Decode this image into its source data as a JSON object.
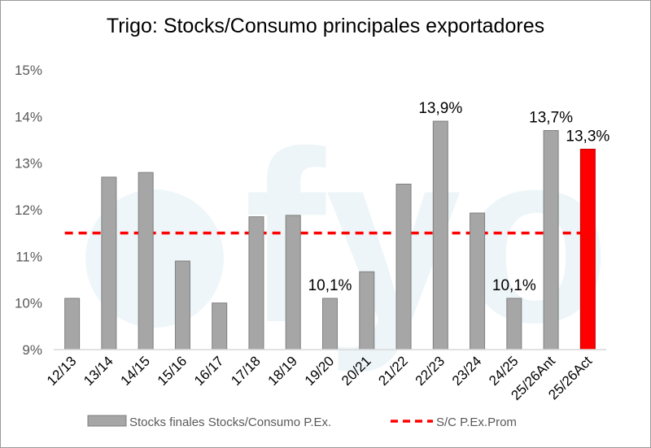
{
  "chart_data": {
    "type": "bar",
    "title": "Trigo: Stocks/Consumo principales exportadores",
    "xlabel": "",
    "ylabel": "",
    "ylim": [
      9,
      15
    ],
    "yticks": [
      "9%",
      "10%",
      "11%",
      "12%",
      "13%",
      "14%",
      "15%"
    ],
    "categories": [
      "12/13",
      "13/14",
      "14/15",
      "15/16",
      "16/17",
      "17/18",
      "18/19",
      "19/20",
      "20/21",
      "21/22",
      "22/23",
      "23/24",
      "24/25",
      "25/26Ant",
      "25/26Act"
    ],
    "series": [
      {
        "name": "Stocks finales Stocks/Consumo P.Ex.",
        "values": [
          10.1,
          12.7,
          12.8,
          10.9,
          10.0,
          11.85,
          11.88,
          10.1,
          10.67,
          12.55,
          13.9,
          11.93,
          10.1,
          13.7,
          13.3
        ],
        "color": "#a6a6a6",
        "highlight_last_color": "#ff0000"
      },
      {
        "name": "S/C P.Ex.Prom",
        "type": "line",
        "style": "dashed",
        "values": [
          11.5,
          11.5,
          11.5,
          11.5,
          11.5,
          11.5,
          11.5,
          11.5,
          11.5,
          11.5,
          11.5,
          11.5,
          11.5,
          11.5,
          11.5
        ],
        "color": "#ff0000"
      }
    ],
    "data_labels": [
      {
        "category": "19/20",
        "text": "10,1%"
      },
      {
        "category": "22/23",
        "text": "13,9%"
      },
      {
        "category": "24/25",
        "text": "10,1%"
      },
      {
        "category": "25/26Ant",
        "text": "13,7%"
      },
      {
        "category": "25/26Act",
        "text": "13,3%"
      }
    ],
    "legend": {
      "position": "bottom",
      "bar_label": "Stocks finales Stocks/Consumo P.Ex.",
      "line_label": "S/C P.Ex.Prom"
    },
    "watermark": "fyo"
  }
}
